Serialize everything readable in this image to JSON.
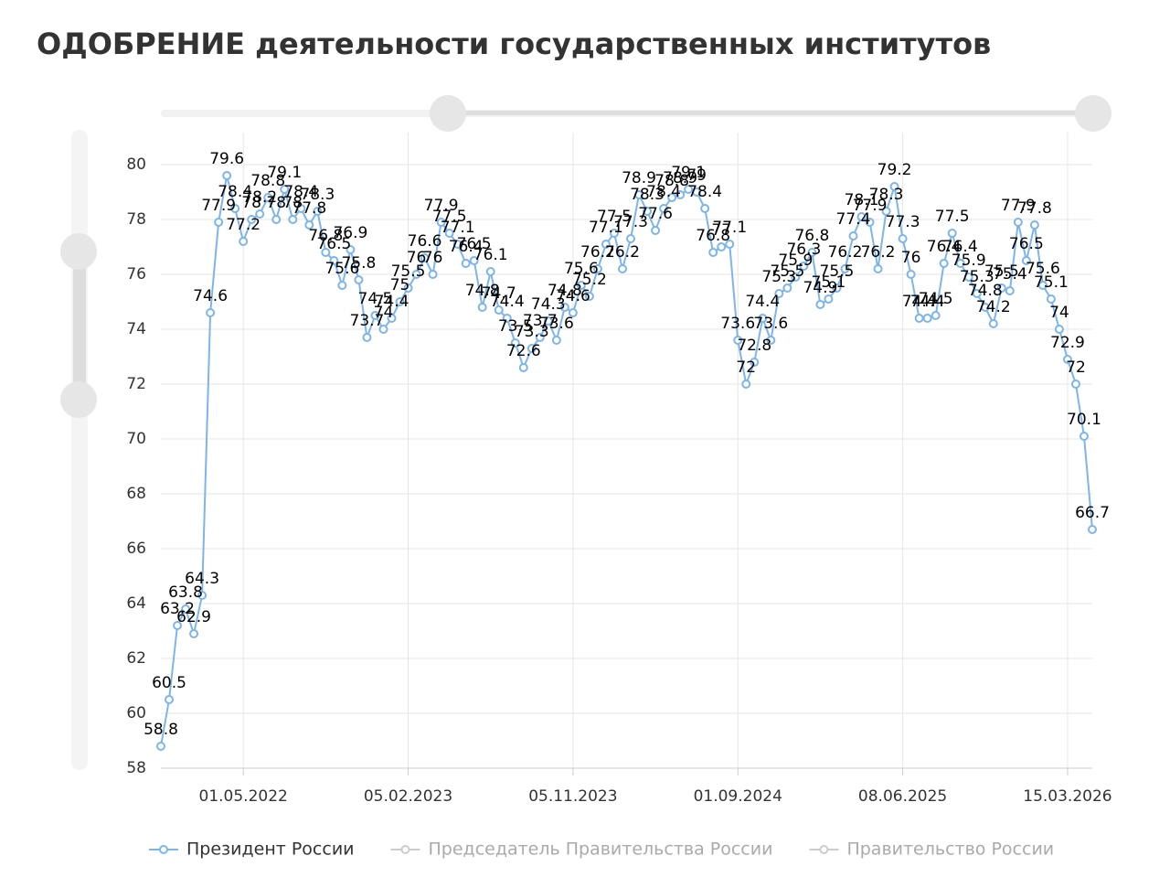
{
  "chart_data": {
    "type": "line",
    "title": "ОДОБРЕНИЕ деятельности государственных институтов",
    "categories": [
      null,
      null,
      null,
      null,
      null,
      null,
      null,
      null,
      null,
      null,
      "01.05.2022",
      null,
      null,
      null,
      null,
      null,
      null,
      null,
      null,
      null,
      null,
      null,
      null,
      null,
      null,
      null,
      null,
      null,
      null,
      null,
      "05.02.2023",
      null,
      null,
      null,
      null,
      null,
      null,
      null,
      null,
      null,
      null,
      null,
      null,
      null,
      null,
      null,
      null,
      null,
      null,
      null,
      "05.11.2023",
      null,
      null,
      null,
      null,
      null,
      null,
      null,
      null,
      null,
      null,
      null,
      null,
      null,
      null,
      null,
      null,
      null,
      null,
      null,
      "01.09.2024",
      null,
      null,
      null,
      null,
      null,
      null,
      null,
      null,
      null,
      null,
      null,
      null,
      null,
      null,
      null,
      null,
      null,
      null,
      null,
      "08.06.2025",
      null,
      null,
      null,
      null,
      null,
      null,
      null,
      null,
      null,
      null,
      null,
      null,
      null,
      null,
      null,
      null,
      null,
      null,
      null,
      "15.03.2026",
      null,
      null,
      null
    ],
    "series": [
      {
        "name": "Президент России",
        "color": "#7cb5ec",
        "visible": true,
        "values": [
          58.8,
          60.5,
          63.2,
          63.8,
          62.9,
          64.3,
          74.6,
          77.9,
          79.6,
          78.4,
          77.2,
          78.0,
          78.2,
          78.8,
          78.0,
          79.1,
          78.0,
          78.4,
          77.8,
          78.3,
          76.8,
          76.5,
          75.6,
          76.9,
          75.8,
          73.7,
          74.5,
          74.0,
          74.4,
          75.0,
          75.5,
          76.0,
          76.6,
          76.0,
          77.9,
          77.5,
          77.1,
          76.4,
          76.5,
          74.8,
          76.1,
          74.7,
          74.4,
          73.5,
          72.6,
          73.3,
          73.7,
          74.3,
          73.6,
          74.8,
          74.6,
          75.6,
          75.2,
          76.2,
          77.1,
          77.5,
          76.2,
          77.3,
          78.9,
          78.3,
          77.6,
          78.4,
          78.8,
          78.9,
          79.1,
          79.0,
          78.4,
          76.8,
          77.0,
          77.1,
          73.6,
          72.0,
          72.8,
          74.4,
          73.6,
          75.3,
          75.5,
          75.9,
          76.3,
          76.8,
          74.9,
          75.1,
          75.5,
          76.2,
          77.4,
          78.1,
          77.9,
          76.2,
          78.3,
          79.2,
          77.3,
          76.0,
          74.4,
          74.4,
          74.5,
          76.4,
          77.5,
          76.4,
          75.9,
          75.3,
          74.8,
          74.2,
          75.5,
          75.4,
          77.9,
          76.5,
          77.8,
          75.6,
          75.1,
          74.0,
          72.9,
          72.0,
          70.1,
          66.7
        ]
      },
      {
        "name": "Председатель Правительства России",
        "color": "#aaaaaa",
        "visible": false
      },
      {
        "name": "Правительство России",
        "color": "#aaaaaa",
        "visible": false
      }
    ],
    "ylim": [
      58,
      80
    ],
    "yticks": [
      58,
      60,
      62,
      64,
      66,
      68,
      70,
      72,
      74,
      76,
      78,
      80
    ],
    "grid": true
  }
}
